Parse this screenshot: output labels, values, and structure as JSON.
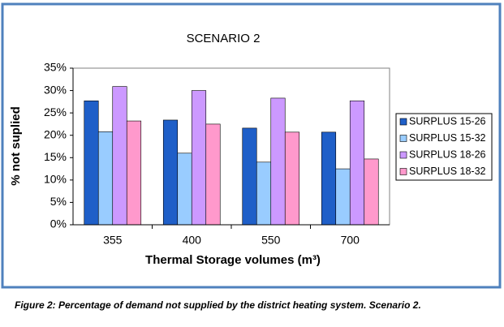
{
  "chart_data": {
    "type": "bar",
    "title": "SCENARIO  2",
    "x_label": "Thermal Storage volumes (m³)",
    "y_label": "% not suplied",
    "caption": "Figure 2: Percentage of demand not supplied by the district heating system. Scenario 2.",
    "categories": [
      "355",
      "400",
      "550",
      "700"
    ],
    "series": [
      {
        "name": "SURPLUS 15-26",
        "color": "#1f5fc8",
        "values": [
          27.7,
          23.4,
          21.6,
          20.7
        ]
      },
      {
        "name": "SURPLUS 15-32",
        "color": "#99ccff",
        "values": [
          20.8,
          16.0,
          14.0,
          12.5
        ]
      },
      {
        "name": "SURPLUS 18-26",
        "color": "#cc99ff",
        "values": [
          30.9,
          30.0,
          28.3,
          27.7
        ]
      },
      {
        "name": "SURPLUS 18-32",
        "color": "#ff99cc",
        "values": [
          23.2,
          22.5,
          20.7,
          14.7
        ]
      }
    ],
    "ylim": [
      0,
      35
    ],
    "yticks": [
      {
        "value": 0,
        "label": "0%"
      },
      {
        "value": 5,
        "label": "5%"
      },
      {
        "value": 10,
        "label": "10%"
      },
      {
        "value": 15,
        "label": "15%"
      },
      {
        "value": 20,
        "label": "20%"
      },
      {
        "value": 25,
        "label": "25%"
      },
      {
        "value": 30,
        "label": "30%"
      },
      {
        "value": 35,
        "label": "35%"
      }
    ],
    "grid": false,
    "legend": "right"
  }
}
